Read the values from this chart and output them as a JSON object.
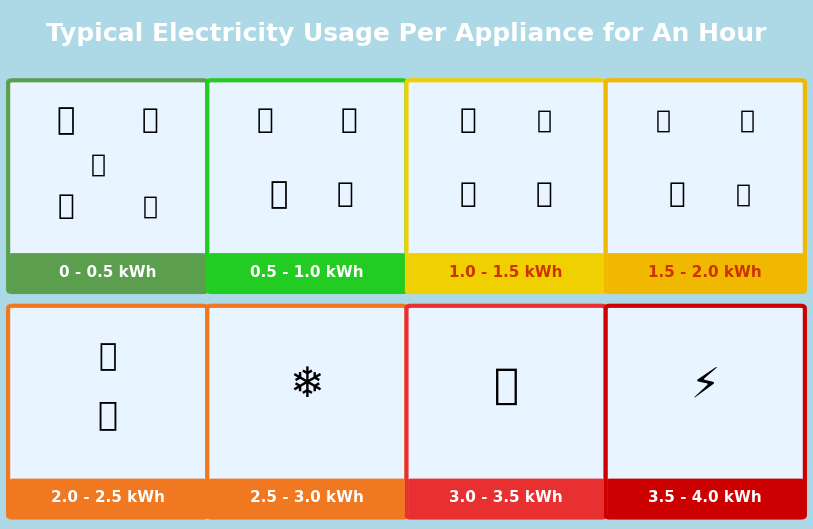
{
  "title": "Typical Electricity Usage Per Appliance for An Hour",
  "title_bg": "#1a4fad",
  "title_color": "#ffffff",
  "background_color": "#add8e6",
  "cards": [
    {
      "label": "0 - 0.5 kWh",
      "border_color": "#5a9e4e",
      "label_bg": "#5a9e4e",
      "label_color": "#ffffff",
      "row": 0,
      "col": 0
    },
    {
      "label": "0.5 - 1.0 kWh",
      "border_color": "#22cc22",
      "label_bg": "#22cc22",
      "label_color": "#ffffff",
      "row": 0,
      "col": 1
    },
    {
      "label": "1.0 - 1.5 kWh",
      "border_color": "#f0d000",
      "label_bg": "#f0d000",
      "label_color": "#cc3300",
      "row": 0,
      "col": 2
    },
    {
      "label": "1.5 - 2.0 kWh",
      "border_color": "#f0b800",
      "label_bg": "#f0b800",
      "label_color": "#cc3300",
      "row": 0,
      "col": 3
    },
    {
      "label": "2.0 - 2.5 kWh",
      "border_color": "#f07820",
      "label_bg": "#f07820",
      "label_color": "#ffffff",
      "row": 1,
      "col": 0
    },
    {
      "label": "2.5 - 3.0 kWh",
      "border_color": "#f07820",
      "label_bg": "#f07820",
      "label_color": "#ffffff",
      "row": 1,
      "col": 1
    },
    {
      "label": "3.0 - 3.5 kWh",
      "border_color": "#e83030",
      "label_bg": "#e83030",
      "label_color": "#ffffff",
      "row": 1,
      "col": 2
    },
    {
      "label": "3.5 - 4.0 kWh",
      "border_color": "#cc0000",
      "label_bg": "#cc0000",
      "label_color": "#ffffff",
      "row": 1,
      "col": 3
    }
  ],
  "grid_rows": 2,
  "grid_cols": 4,
  "fig_width": 8.13,
  "fig_height": 5.29
}
